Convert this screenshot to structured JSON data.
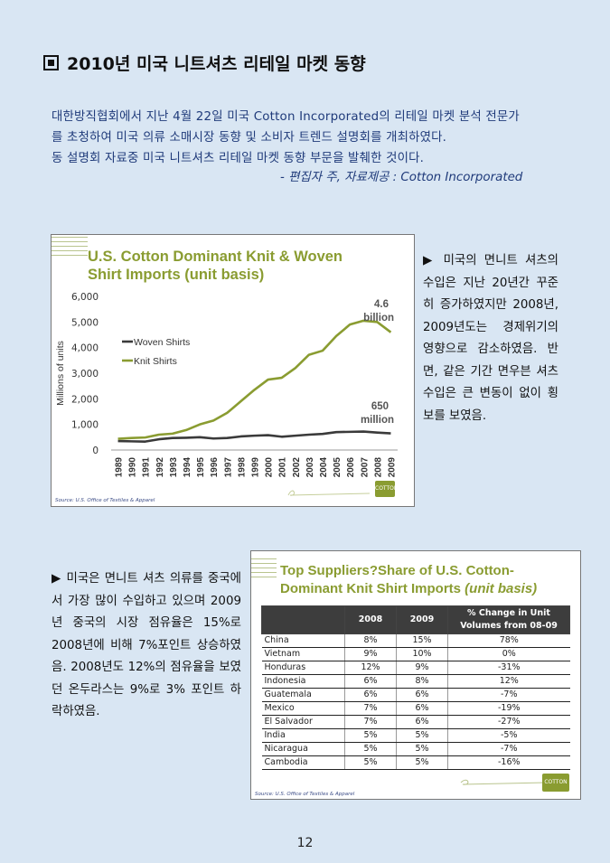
{
  "heading": "2010년 미국 니트셔츠 리테일 마켓 동향",
  "intro": {
    "line1": "대한방직협회에서  지난  4월  22일  미국  Cotton  Incorporated의  리테일  마켓  분석  전문가",
    "line2": "를  초청하여  미국  의류  소매시장  동향  및  소비자  트렌드  설명회를  개최하였다.",
    "line3": "동  설명회  자료중  미국  니트셔츠  리테일  마켓  동향  부문을  발췌한  것이다.",
    "credit": "-   편집자 주,     자료제공 : Cotton Incorporated"
  },
  "chart1": {
    "title_line1": "U.S. Cotton Dominant Knit & Woven",
    "title_line2": "Shirt Imports (unit basis)",
    "source": "Source: U.S. Office of Textiles & Apparel",
    "logo_text": "COTTON",
    "annotations": [
      {
        "text1": "4.6",
        "text2": "billion"
      },
      {
        "text1": "650",
        "text2": "million"
      }
    ]
  },
  "chart_data": {
    "type": "line",
    "title": "U.S. Cotton Dominant Knit & Woven Shirt Imports (unit basis)",
    "xlabel": "",
    "ylabel": "Millions of units",
    "ylim": [
      0,
      6000
    ],
    "yticks": [
      "0",
      "1,000",
      "2,000",
      "3,000",
      "4,000",
      "5,000",
      "6,000"
    ],
    "categories": [
      "1989",
      "1990",
      "1991",
      "1992",
      "1993",
      "1994",
      "1995",
      "1996",
      "1997",
      "1998",
      "1999",
      "2000",
      "2001",
      "2002",
      "2003",
      "2004",
      "2005",
      "2006",
      "2007",
      "2008",
      "2009"
    ],
    "series": [
      {
        "name": "Woven Shirts",
        "color": "#3a3a3a",
        "values": [
          350,
          340,
          330,
          420,
          470,
          480,
          500,
          450,
          470,
          530,
          560,
          580,
          520,
          560,
          600,
          630,
          700,
          710,
          720,
          680,
          650
        ]
      },
      {
        "name": "Knit Shirts",
        "color": "#8a9c31",
        "values": [
          440,
          470,
          490,
          600,
          640,
          780,
          1000,
          1150,
          1450,
          1900,
          2350,
          2750,
          2820,
          3200,
          3720,
          3880,
          4450,
          4900,
          5050,
          5000,
          4600
        ]
      }
    ],
    "legend": "left"
  },
  "side1": "▶  미국의  면니트  셔츠의  수입은  지난  20년간  꾸준히  증가하였지만  2008년,  2009년도는  경제위기의  영향으로  감소하였음.  반면,  같은  기간  면우븐  셔츠  수입은  큰  변동이  없이  횡보를  보였음.",
  "side2": "▶  미국은  면니트  셔츠  의류를  중국에서  가장  많이  수입하고  있으며  2009년  중국의  시장  점유율은  15%로  2008년에  비해  7%포인트  상승하였음.   2008년도  12%의  점유율을  보였던  온두라스는  9%로  3%  포인트  하락하였음.",
  "chart2": {
    "title_line1": "Top Suppliers?Share of U.S. Cotton-",
    "title_line2_plain": "Dominant Knit Shirt Imports ",
    "title_line2_italic": "(unit basis)",
    "source": "Source: U.S. Office of Textiles & Apparel",
    "logo_text": "COTTON",
    "headers": [
      "",
      "2008",
      "2009",
      "% Change in Unit Volumes from 08-09"
    ],
    "rows": [
      [
        "China",
        "8%",
        "15%",
        "78%"
      ],
      [
        "Vietnam",
        "9%",
        "10%",
        "0%"
      ],
      [
        "Honduras",
        "12%",
        "9%",
        "-31%"
      ],
      [
        "Indonesia",
        "6%",
        "8%",
        "12%"
      ],
      [
        "Guatemala",
        "6%",
        "6%",
        "-7%"
      ],
      [
        "Mexico",
        "7%",
        "6%",
        "-19%"
      ],
      [
        "El Salvador",
        "7%",
        "6%",
        "-27%"
      ],
      [
        "India",
        "5%",
        "5%",
        "-5%"
      ],
      [
        "Nicaragua",
        "5%",
        "5%",
        "-7%"
      ],
      [
        "Cambodia",
        "5%",
        "5%",
        "-16%"
      ]
    ]
  },
  "page_number": "12"
}
